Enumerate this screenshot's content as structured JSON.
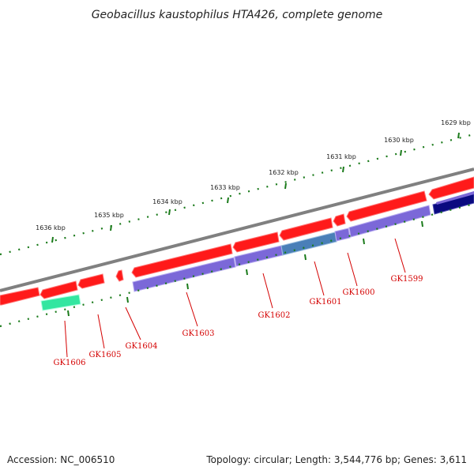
{
  "header": {
    "title": "Geobacillus kaustophilus HTA426, complete genome"
  },
  "footer": {
    "accession": "Accession: NC_006510",
    "topology": "Topology: circular; Length: 3,544,776 bp; Genes: 3,611"
  },
  "ruler": {
    "unit": "kbp",
    "ticks": [
      {
        "label": "1636 kbp",
        "kbp": 1636
      },
      {
        "label": "1635 kbp",
        "kbp": 1635
      },
      {
        "label": "1634 kbp",
        "kbp": 1634
      },
      {
        "label": "1633 kbp",
        "kbp": 1633
      },
      {
        "label": "1632 kbp",
        "kbp": 1632
      },
      {
        "label": "1631 kbp",
        "kbp": 1631
      },
      {
        "label": "1630 kbp",
        "kbp": 1630
      },
      {
        "label": "1629 kbp",
        "kbp": 1629
      }
    ]
  },
  "genes": [
    {
      "label": "GK1606",
      "strand": "reverse"
    },
    {
      "label": "GK1605",
      "strand": "reverse"
    },
    {
      "label": "GK1604",
      "strand": "reverse"
    },
    {
      "label": "GK1603",
      "strand": "reverse"
    },
    {
      "label": "GK1602",
      "strand": "reverse"
    },
    {
      "label": "GK1601",
      "strand": "reverse"
    },
    {
      "label": "GK1600",
      "strand": "reverse"
    },
    {
      "label": "GK1599",
      "strand": "reverse"
    }
  ],
  "colors": {
    "backbone": "#808080",
    "cds_arrow": "#ff0000",
    "cog_purple": "#7b68d8",
    "cog_steel": "#4a7fb8",
    "cog_green": "#33e6a0",
    "cog_navy": "#0a0a80",
    "ruler_dots": "#1a7a1a",
    "label_text": "#d40000"
  }
}
